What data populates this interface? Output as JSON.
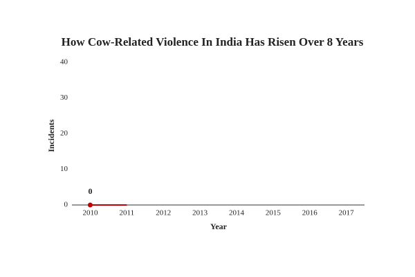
{
  "chart_data": {
    "type": "line",
    "title": "How Cow-Related Violence In India Has Risen Over 8 Years",
    "x_label": "Year",
    "y_label": "Incidents",
    "categories": [
      "2010",
      "2011",
      "2012",
      "2013",
      "2014",
      "2015",
      "2016",
      "2017"
    ],
    "series": [
      {
        "name": "Incidents",
        "color": "#c00000",
        "values": [
          0,
          0,
          null,
          null,
          null,
          null,
          null,
          null
        ],
        "value_labels": [
          "0",
          null,
          null,
          null,
          null,
          null,
          null,
          null
        ]
      }
    ],
    "ylim": [
      0,
      40
    ],
    "yticks": [
      0,
      10,
      20,
      30,
      40
    ],
    "grid": false
  }
}
